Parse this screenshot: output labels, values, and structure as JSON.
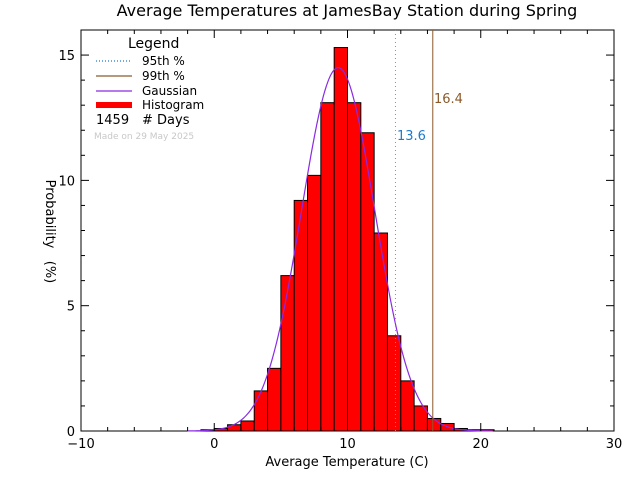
{
  "chart_data": {
    "type": "histogram",
    "title": "Average Temperatures at JamesBay Station during Spring",
    "xlabel": "Average Temperature (C)",
    "ylabel_line1": "Probability",
    "ylabel_line2": "(%)",
    "xlim": [
      -10,
      30
    ],
    "ylim": [
      0,
      16
    ],
    "x_ticks": [
      -10,
      0,
      10,
      20,
      30
    ],
    "y_ticks": [
      0,
      5,
      10,
      15
    ],
    "bin_width": 1,
    "bins": [
      {
        "x0": -1,
        "value": 0.05
      },
      {
        "x0": 0,
        "value": 0.1
      },
      {
        "x0": 1,
        "value": 0.25
      },
      {
        "x0": 2,
        "value": 0.4
      },
      {
        "x0": 3,
        "value": 1.6
      },
      {
        "x0": 4,
        "value": 2.5
      },
      {
        "x0": 5,
        "value": 6.2
      },
      {
        "x0": 6,
        "value": 9.2
      },
      {
        "x0": 7,
        "value": 10.2
      },
      {
        "x0": 8,
        "value": 13.1
      },
      {
        "x0": 9,
        "value": 15.3
      },
      {
        "x0": 10,
        "value": 13.1
      },
      {
        "x0": 11,
        "value": 11.9
      },
      {
        "x0": 12,
        "value": 7.9
      },
      {
        "x0": 13,
        "value": 3.8
      },
      {
        "x0": 14,
        "value": 2.0
      },
      {
        "x0": 15,
        "value": 1.0
      },
      {
        "x0": 16,
        "value": 0.5
      },
      {
        "x0": 17,
        "value": 0.3
      },
      {
        "x0": 18,
        "value": 0.1
      },
      {
        "x0": 19,
        "value": 0.05
      },
      {
        "x0": 20,
        "value": 0.05
      }
    ],
    "gaussian": {
      "mean": 9.3,
      "sigma": 2.75,
      "peak": 14.5
    },
    "percentile_95": {
      "value": 13.6,
      "label": "13.6",
      "color": "#e07a3a",
      "label_color": "#1f7acc"
    },
    "percentile_99": {
      "value": 16.4,
      "label": "16.4",
      "color": "#8b5a2b",
      "label_color": "#8b5a2b"
    },
    "colors": {
      "histogram": "#ff0000",
      "gaussian": "#8a2be2",
      "p95_legend": "#1f7acc",
      "p99_legend": "#8b5a2b"
    }
  },
  "legend": {
    "title": "Legend",
    "items": [
      "95th %",
      "99th %",
      "Gaussian",
      "Histogram"
    ],
    "days_count": "1459",
    "days_label": "# Days",
    "made_on": "Made on 29 May 2025"
  }
}
